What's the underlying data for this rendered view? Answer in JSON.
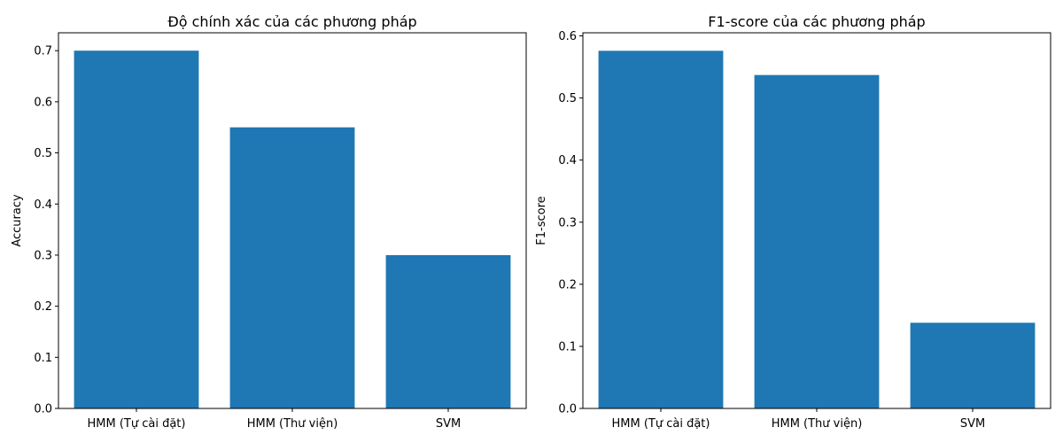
{
  "chart_data": [
    {
      "type": "bar",
      "title": "Độ chính xác của các phương pháp",
      "xlabel": "",
      "ylabel": "Accuracy",
      "categories": [
        "HMM (Tự cài đặt)",
        "HMM (Thư viện)",
        "SVM"
      ],
      "values": [
        0.7,
        0.55,
        0.3
      ],
      "ylim": [
        0,
        0.735
      ],
      "yticks": [
        0.0,
        0.1,
        0.2,
        0.3,
        0.4,
        0.5,
        0.6,
        0.7
      ],
      "ytick_labels": [
        "0.0",
        "0.1",
        "0.2",
        "0.3",
        "0.4",
        "0.5",
        "0.6",
        "0.7"
      ],
      "bar_color": "#1f77b4",
      "grid": false,
      "legend": "none"
    },
    {
      "type": "bar",
      "title": "F1-score của các phương pháp",
      "xlabel": "",
      "ylabel": "F1-score",
      "categories": [
        "HMM (Tự cài đặt)",
        "HMM (Thư viện)",
        "SVM"
      ],
      "values": [
        0.576,
        0.537,
        0.138
      ],
      "ylim": [
        0,
        0.605
      ],
      "yticks": [
        0.0,
        0.1,
        0.2,
        0.3,
        0.4,
        0.5,
        0.6
      ],
      "ytick_labels": [
        "0.0",
        "0.1",
        "0.2",
        "0.3",
        "0.4",
        "0.5",
        "0.6"
      ],
      "bar_color": "#1f77b4",
      "grid": false,
      "legend": "none"
    }
  ]
}
